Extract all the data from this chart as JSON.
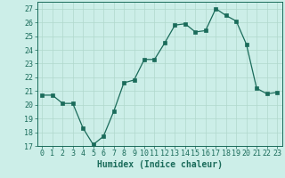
{
  "x": [
    0,
    1,
    2,
    3,
    4,
    5,
    6,
    7,
    8,
    9,
    10,
    11,
    12,
    13,
    14,
    15,
    16,
    17,
    18,
    19,
    20,
    21,
    22,
    23
  ],
  "y": [
    20.7,
    20.7,
    20.1,
    20.1,
    18.3,
    17.1,
    17.7,
    19.5,
    21.6,
    21.8,
    23.3,
    23.3,
    24.5,
    25.8,
    25.9,
    25.3,
    25.4,
    27.0,
    26.5,
    26.1,
    24.4,
    21.2,
    20.8,
    20.9
  ],
  "line_color": "#1a6b5a",
  "marker": "s",
  "marker_size": 2.2,
  "bg_color": "#cceee8",
  "grid_color": "#b0d8cc",
  "xlabel": "Humidex (Indice chaleur)",
  "ylim": [
    17,
    27.5
  ],
  "xlim": [
    -0.5,
    23.5
  ],
  "yticks": [
    17,
    18,
    19,
    20,
    21,
    22,
    23,
    24,
    25,
    26,
    27
  ],
  "xticks": [
    0,
    1,
    2,
    3,
    4,
    5,
    6,
    7,
    8,
    9,
    10,
    11,
    12,
    13,
    14,
    15,
    16,
    17,
    18,
    19,
    20,
    21,
    22,
    23
  ],
  "xlabel_fontsize": 7,
  "tick_fontsize": 6
}
